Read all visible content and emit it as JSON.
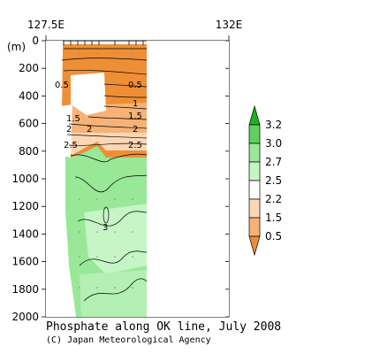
{
  "chart_data": {
    "type": "contour",
    "title": "Phosphate along OK line, July 2008",
    "credit": "(C) Japan Meteorological Agency",
    "x_axis": {
      "tick_labels": [
        "127.5E",
        "132E"
      ]
    },
    "y_axis": {
      "unit_label": "(m)",
      "ticks": [
        0,
        200,
        400,
        600,
        800,
        1000,
        1200,
        1400,
        1600,
        1800,
        2000
      ],
      "ylim": [
        0,
        2000
      ],
      "inverted": true
    },
    "colorbar": {
      "tick_labels": [
        "3.2",
        "3.0",
        "2.7",
        "2.5",
        "2.2",
        "1.5",
        "0.5"
      ],
      "colors": [
        "#1db21d",
        "#5ed25e",
        "#98e898",
        "#c6f5c6",
        "#ffffff",
        "#fcd7b6",
        "#f6b277",
        "#ee8f36"
      ]
    },
    "contour_labels": [
      "0.5",
      "0.5",
      "1",
      "1.5",
      "1.5",
      "2",
      "2",
      "2",
      "2.5",
      "2.5",
      "3"
    ]
  }
}
